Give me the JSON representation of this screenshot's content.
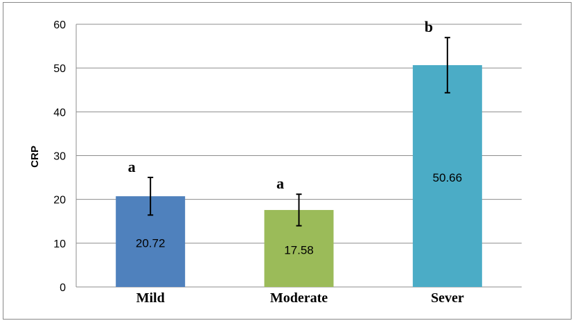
{
  "chart_data": {
    "type": "bar",
    "title": "",
    "xlabel": "",
    "ylabel": "CRP",
    "ylim": [
      0,
      60
    ],
    "yticks": [
      0,
      10,
      20,
      30,
      40,
      50,
      60
    ],
    "grid": true,
    "legend": "none",
    "categories": [
      "Mild",
      "Moderate",
      "Sever"
    ],
    "values": [
      20.72,
      17.58,
      50.66
    ],
    "data_labels": [
      "20.72",
      "17.58",
      "50.66"
    ],
    "error_bars": [
      4.3,
      3.6,
      6.3
    ],
    "significance_letters": [
      "a",
      "a",
      "b"
    ],
    "colors": [
      "#4F81BD",
      "#9BBB59",
      "#4BACC6"
    ]
  }
}
